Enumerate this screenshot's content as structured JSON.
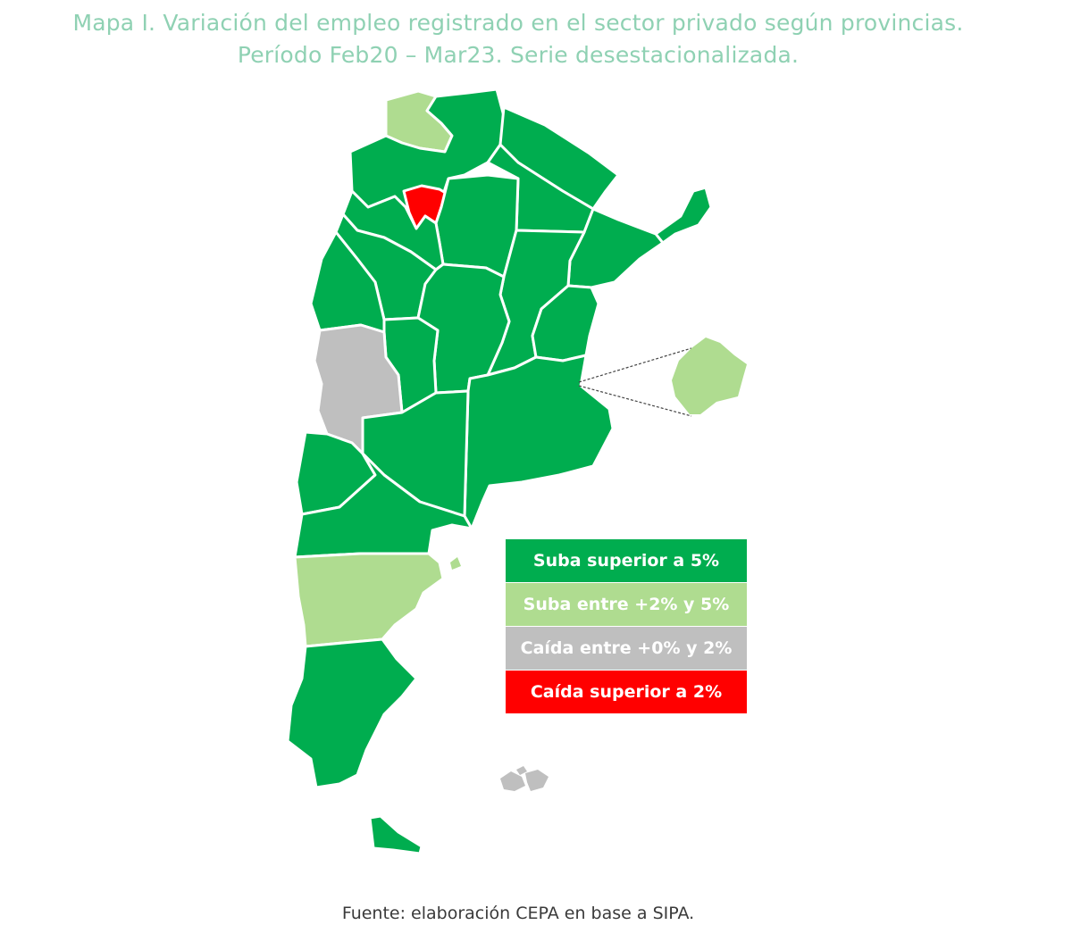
{
  "title": {
    "line1": "Mapa I. Variación del empleo registrado en el sector privado según provincias.",
    "line2": "Período Feb20 – Mar23. Serie desestacionalizada."
  },
  "colors": {
    "suba_superior_5": "#00ad4f",
    "suba_2_5": "#afdc90",
    "caida_0_2": "#bfbfbf",
    "caida_superior_2": "#ff0000"
  },
  "legend": [
    {
      "label": "Suba superior a 5%",
      "color": "#00ad4f"
    },
    {
      "label": "Suba entre +2% y 5%",
      "color": "#afdc90"
    },
    {
      "label": "Caída entre +0% y 2%",
      "color": "#bfbfbf"
    },
    {
      "label": "Caída superior a 2%",
      "color": "#ff0000"
    }
  ],
  "source": "Fuente: elaboración CEPA en base a SIPA."
}
